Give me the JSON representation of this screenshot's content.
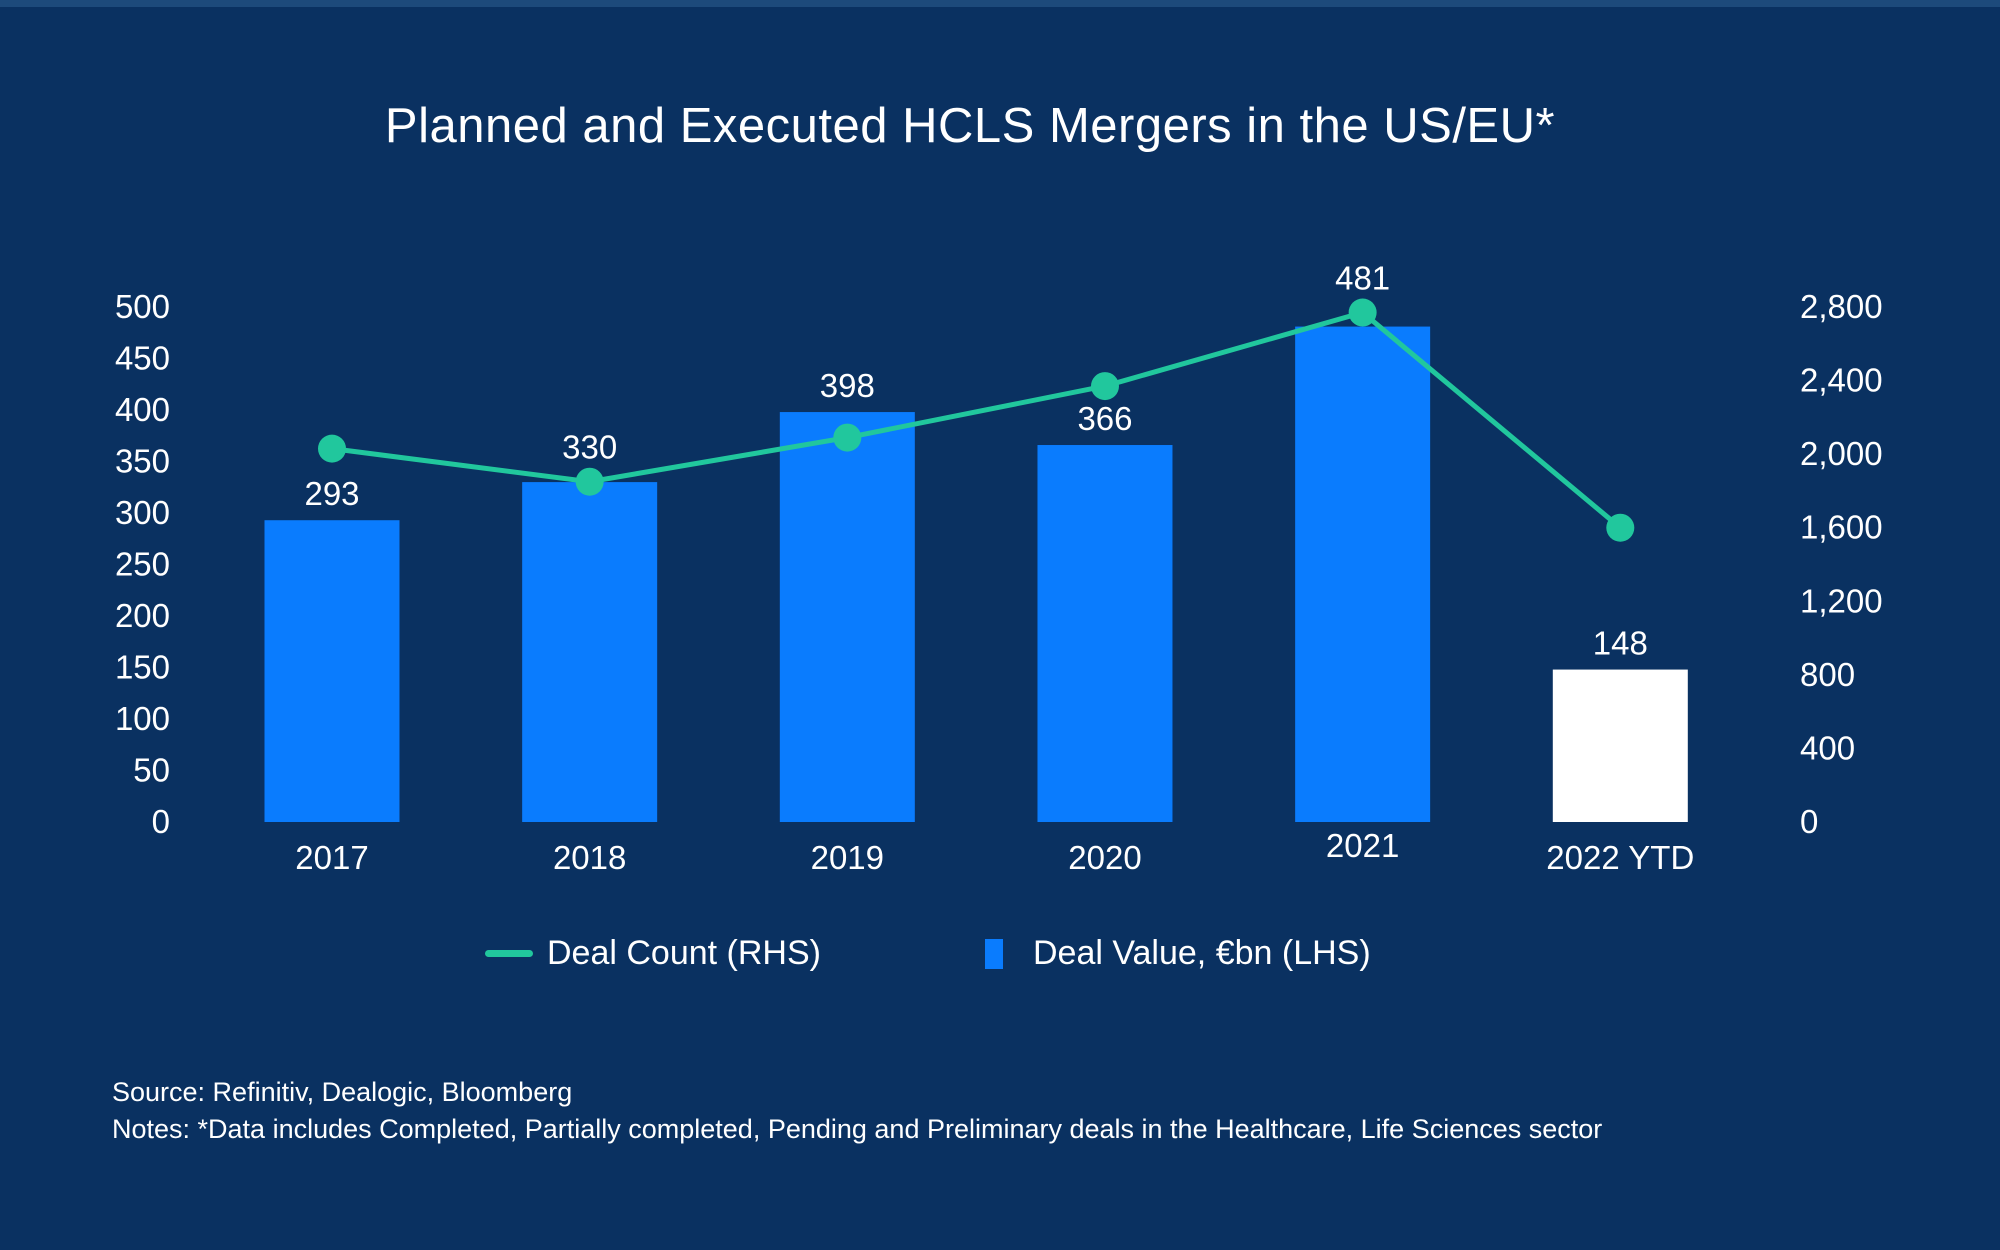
{
  "title": "Planned and Executed HCLS Mergers in the US/EU*",
  "colors": {
    "background": "#0A3161",
    "top_strip": "#1D4A7B",
    "text": "#FFFFFF",
    "bar_blue": "#0A7CFE",
    "bar_white": "#FFFFFF",
    "line_teal": "#21C79D"
  },
  "chart_data": {
    "type": "bar",
    "subtype": "combo-bar-line-dual-axis",
    "title": "Planned and Executed HCLS Mergers in the US/EU*",
    "categories": [
      "2017",
      "2018",
      "2019",
      "2020",
      "2021",
      "2022 YTD"
    ],
    "series": [
      {
        "name": "Deal Value, €bn (LHS)",
        "type": "bar",
        "axis": "left",
        "values": [
          293,
          330,
          398,
          366,
          481,
          148
        ],
        "data_labels": [
          "293",
          "330",
          "398",
          "366",
          "481",
          "148"
        ],
        "colors": [
          "#0A7CFE",
          "#0A7CFE",
          "#0A7CFE",
          "#0A7CFE",
          "#0A7CFE",
          "#FFFFFF"
        ]
      },
      {
        "name": "Deal Count (RHS)",
        "type": "line",
        "axis": "right",
        "values_estimated": [
          2030,
          1850,
          2090,
          2370,
          2770,
          1600
        ],
        "color": "#21C79D"
      }
    ],
    "left_axis": {
      "min": 0,
      "max": 500,
      "tick_step": 50,
      "ticks": [
        "500",
        "450",
        "400",
        "350",
        "300",
        "250",
        "200",
        "150",
        "100",
        "50",
        "0"
      ]
    },
    "right_axis": {
      "min": 0,
      "max": 2800,
      "tick_step": 400,
      "ticks": [
        "2,800",
        "2,400",
        "2,000",
        "1,600",
        "1,200",
        "800",
        "400",
        "0"
      ]
    },
    "gridlines": false,
    "legend_position": "bottom"
  },
  "legend": {
    "items": [
      {
        "label": "Deal Count (RHS)",
        "swatch": "line",
        "color": "#21C79D"
      },
      {
        "label": "Deal Value, €bn (LHS)",
        "swatch": "square",
        "color": "#0A7CFE"
      }
    ]
  },
  "footer": {
    "source": "Source: Refinitiv, Dealogic, Bloomberg",
    "notes": "Notes: *Data includes Completed, Partially completed, Pending and Preliminary deals in the Healthcare, Life Sciences sector"
  }
}
